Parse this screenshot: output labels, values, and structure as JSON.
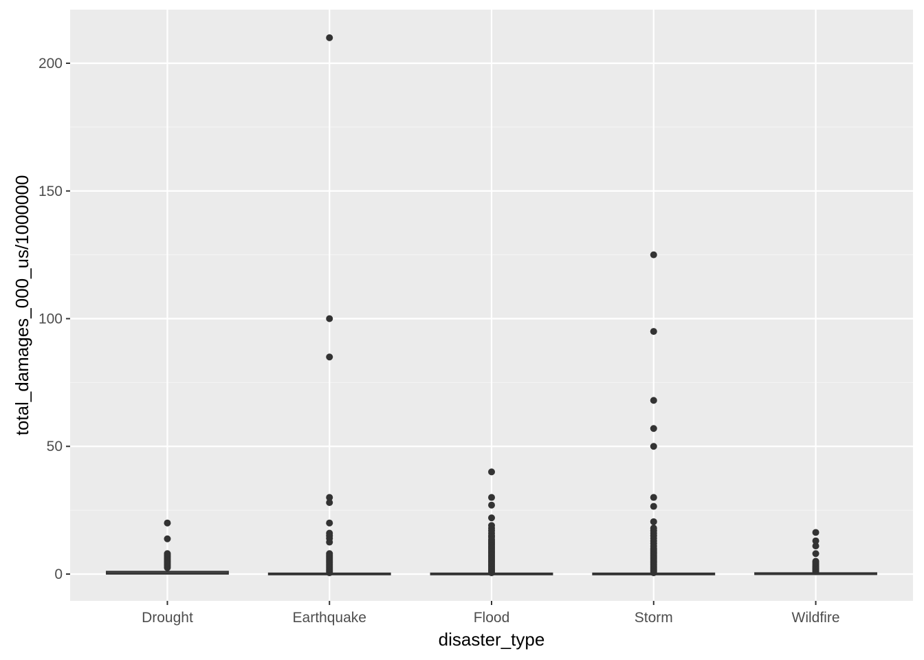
{
  "chart_data": {
    "type": "boxplot",
    "title": "",
    "xlabel": "disaster_type",
    "ylabel": "total_damages_000_us/1000000",
    "categories": [
      "Drought",
      "Earthquake",
      "Flood",
      "Storm",
      "Wildfire"
    ],
    "ylim": [
      -10.5,
      221
    ],
    "yticks": [
      0,
      50,
      100,
      150,
      200
    ],
    "grid": true,
    "legend": "none",
    "colors": {
      "panel_background": "#ebebeb",
      "grid_major": "#ffffff",
      "grid_minor": "#f5f5f5",
      "box_stroke": "#333333",
      "outlier": "#333333",
      "tick_text": "#4d4d4d",
      "axis_title": "#000000"
    },
    "boxes": [
      {
        "category": "Drought",
        "ymin": 0,
        "q1": 0.05,
        "median": 0.3,
        "q3": 1.0,
        "ymax": 2.2,
        "outliers": [
          2.5,
          3.0,
          3.5,
          4.0,
          4.5,
          5.0,
          5.5,
          6.0,
          6.5,
          7.0,
          7.5,
          8.0,
          13.8,
          20.0
        ]
      },
      {
        "category": "Earthquake",
        "ymin": 0,
        "q1": 0,
        "median": 0.01,
        "q3": 0.1,
        "ymax": 0.25,
        "outliers": [
          0.5,
          1.0,
          1.5,
          2.0,
          2.5,
          3.0,
          3.5,
          4.0,
          4.5,
          5.0,
          5.5,
          6.0,
          6.5,
          7.0,
          7.5,
          8.0,
          12.5,
          14.0,
          15.0,
          16.0,
          20.0,
          28.0,
          30.0,
          85.0,
          100.0,
          210.0
        ]
      },
      {
        "category": "Flood",
        "ymin": 0,
        "q1": 0,
        "median": 0.01,
        "q3": 0.1,
        "ymax": 0.25,
        "outliers": [
          0.5,
          1.0,
          1.5,
          2.0,
          2.5,
          3.0,
          3.5,
          4.0,
          4.5,
          5.0,
          5.5,
          6.0,
          6.5,
          7.0,
          7.5,
          8.0,
          8.5,
          9.0,
          9.5,
          10.0,
          10.5,
          11.0,
          11.5,
          12.0,
          12.5,
          13.0,
          13.5,
          14.5,
          15.0,
          16.0,
          17.0,
          18.0,
          19.0,
          22.0,
          27.0,
          30.0,
          40.0
        ]
      },
      {
        "category": "Storm",
        "ymin": 0,
        "q1": 0,
        "median": 0.01,
        "q3": 0.1,
        "ymax": 0.25,
        "outliers": [
          0.5,
          1.0,
          1.5,
          2.0,
          2.5,
          3.0,
          3.5,
          4.0,
          4.5,
          5.0,
          5.5,
          6.0,
          6.5,
          7.0,
          7.5,
          8.0,
          8.5,
          9.0,
          9.5,
          10.0,
          11.0,
          12.0,
          13.0,
          14.0,
          15.0,
          16.0,
          17.0,
          18.0,
          20.5,
          26.5,
          30.0,
          50.0,
          57.0,
          68.0,
          95.0,
          125.0
        ]
      },
      {
        "category": "Wildfire",
        "ymin": 0,
        "q1": 0.02,
        "median": 0.1,
        "q3": 0.3,
        "ymax": 0.7,
        "outliers": [
          0.9,
          1.2,
          1.5,
          1.8,
          2.1,
          2.4,
          2.7,
          3.0,
          3.5,
          4.0,
          4.5,
          5.0,
          8.0,
          11.0,
          13.0,
          16.3
        ]
      }
    ]
  }
}
